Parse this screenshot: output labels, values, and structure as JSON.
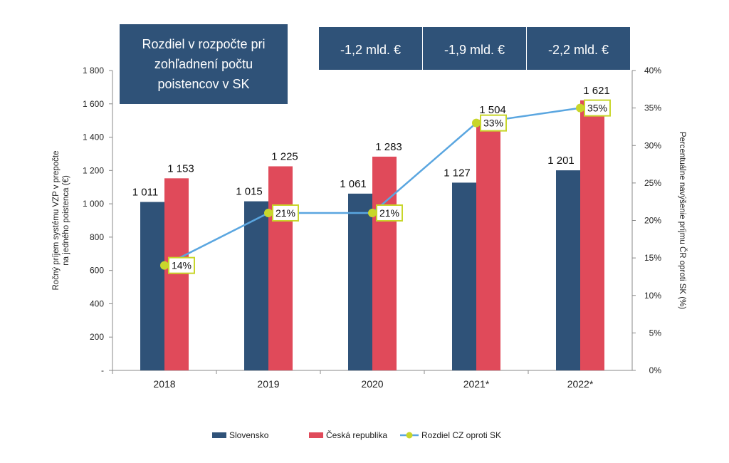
{
  "chart_data": {
    "type": "bar",
    "categories": [
      "2018",
      "2019",
      "2020",
      "2021*",
      "2022*"
    ],
    "series": [
      {
        "name": "Slovensko",
        "values": [
          1011,
          1015,
          1061,
          1127,
          1201
        ],
        "labels": [
          "1 011",
          "1 015",
          "1 061",
          "1 127",
          "1 201"
        ],
        "color": "#2f5278"
      },
      {
        "name": "Česká republika",
        "values": [
          1153,
          1225,
          1283,
          1504,
          1621
        ],
        "labels": [
          "1 153",
          "1 225",
          "1 283",
          "1 504",
          "1 621"
        ],
        "color": "#e04a5a"
      }
    ],
    "line_series": {
      "name": "Rozdiel CZ oproti SK",
      "values": [
        14,
        21,
        21,
        33,
        35
      ],
      "labels": [
        "14%",
        "21%",
        "21%",
        "33%",
        "35%"
      ],
      "color": "#5aa6e0",
      "marker_color": "#c8d62b",
      "axis": "right"
    },
    "ylabel": "Ročný príjem systému VZP v prepočte na jedného poistenca (€)",
    "y2label": "Percentuálne navýšenie príjmu ČR oproti SK (%)",
    "ylim": [
      0,
      1800
    ],
    "y2lim": [
      0,
      40
    ],
    "yticks": [
      0,
      200,
      400,
      600,
      800,
      1000,
      1200,
      1400,
      1600,
      1800
    ],
    "ytick_labels": [
      "-",
      "200",
      "400",
      "600",
      "800",
      "1 000",
      "1 200",
      "1 400",
      "1 600",
      "1 800"
    ],
    "y2ticks": [
      0,
      5,
      10,
      15,
      20,
      25,
      30,
      35,
      40
    ],
    "y2tick_labels": [
      "0%",
      "5%",
      "10%",
      "15%",
      "20%",
      "25%",
      "30%",
      "35%",
      "40%"
    ],
    "grid": false,
    "legend_position": "bottom",
    "annotations": [
      {
        "text": "Rozdiel v rozpočte pri zohľadnení počtu poistencov v SK",
        "role": "header-box"
      },
      {
        "text": "-1,2 mld. €",
        "category": "2020",
        "role": "header-box"
      },
      {
        "text": "-1,9 mld. €",
        "category": "2021*",
        "role": "header-box"
      },
      {
        "text": "-2,2 mld. €",
        "category": "2022*",
        "role": "header-box"
      }
    ],
    "annotation_color": "#2f5278"
  }
}
